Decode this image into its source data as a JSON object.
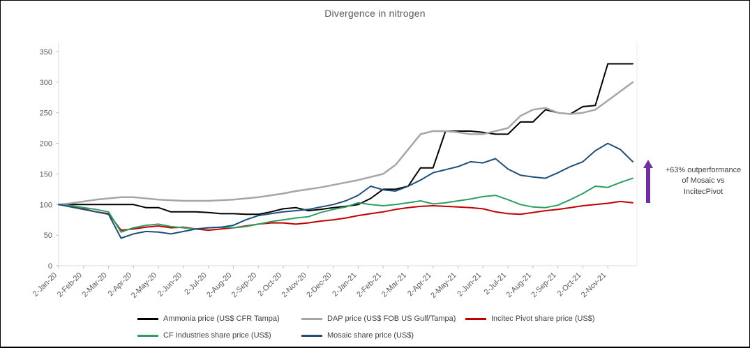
{
  "chart_data": {
    "type": "line",
    "title": "Divergence in nitrogen",
    "xlabel": "",
    "ylabel": "",
    "ylim": [
      0,
      350
    ],
    "yticks": [
      0,
      50,
      100,
      150,
      200,
      250,
      300,
      350
    ],
    "grid": false,
    "legend_position": "bottom",
    "x": [
      "2-Jan-20",
      "2-Feb-20",
      "2-Mar-20",
      "2-Apr-20",
      "2-May-20",
      "2-Jun-20",
      "2-Jul-20",
      "2-Aug-20",
      "2-Sep-20",
      "2-Oct-20",
      "2-Nov-20",
      "2-Dec-20",
      "2-Jan-21",
      "2-Feb-21",
      "2-Mar-21",
      "2-Apr-21",
      "2-May-21",
      "2-Jun-21",
      "2-Jul-21",
      "2-Aug-21",
      "2-Sep-21",
      "2-Oct-21",
      "2-Nov-21"
    ],
    "x_note": "values sampled twice per labelled month; even indices align with tick labels",
    "series": [
      {
        "name": "Ammonia price (US$ CFR Tampa)",
        "color": "#000000",
        "width": 2,
        "values": [
          100,
          100,
          100,
          100,
          100,
          100,
          100,
          95,
          95,
          88,
          88,
          88,
          87,
          85,
          85,
          84,
          84,
          88,
          93,
          95,
          90,
          92,
          95,
          97,
          100,
          110,
          125,
          125,
          130,
          160,
          160,
          220,
          220,
          220,
          218,
          215,
          215,
          235,
          235,
          255,
          250,
          248,
          260,
          262,
          330,
          330,
          330
        ]
      },
      {
        "name": "DAP price (US$ FOB US Gulf/Tampa)",
        "color": "#a6a6a6",
        "width": 2.5,
        "values": [
          100,
          102,
          105,
          108,
          110,
          112,
          112,
          110,
          108,
          107,
          106,
          106,
          106,
          107,
          108,
          110,
          112,
          115,
          118,
          122,
          125,
          128,
          132,
          136,
          140,
          145,
          150,
          165,
          190,
          215,
          220,
          220,
          218,
          215,
          215,
          220,
          225,
          245,
          255,
          258,
          250,
          248,
          250,
          255,
          270,
          285,
          300
        ]
      },
      {
        "name": "Incitec Pivot share price (US$)",
        "color": "#c00000",
        "width": 2,
        "values": [
          100,
          97,
          93,
          88,
          85,
          58,
          60,
          63,
          65,
          62,
          63,
          60,
          58,
          60,
          62,
          65,
          68,
          70,
          70,
          68,
          70,
          73,
          75,
          78,
          82,
          85,
          88,
          92,
          95,
          97,
          98,
          97,
          96,
          95,
          93,
          88,
          85,
          84,
          87,
          90,
          92,
          95,
          98,
          100,
          102,
          105,
          103
        ]
      },
      {
        "name": "CF Industries share price (US$)",
        "color": "#2e9e63",
        "width": 2,
        "values": [
          100,
          98,
          95,
          92,
          88,
          55,
          62,
          66,
          68,
          64,
          62,
          60,
          62,
          63,
          62,
          64,
          68,
          72,
          75,
          78,
          80,
          87,
          92,
          96,
          103,
          100,
          98,
          100,
          103,
          106,
          101,
          103,
          106,
          109,
          113,
          115,
          108,
          100,
          96,
          95,
          99,
          108,
          118,
          130,
          128,
          136,
          143
        ]
      },
      {
        "name": "Mosaic share price (US$)",
        "color": "#1f4e79",
        "width": 2,
        "values": [
          100,
          96,
          92,
          88,
          84,
          45,
          52,
          56,
          55,
          52,
          56,
          60,
          62,
          63,
          66,
          75,
          82,
          85,
          88,
          90,
          92,
          96,
          100,
          106,
          115,
          130,
          124,
          122,
          130,
          140,
          152,
          157,
          162,
          170,
          168,
          175,
          158,
          148,
          145,
          143,
          152,
          162,
          170,
          188,
          200,
          190,
          170
        ]
      }
    ],
    "annotation": {
      "lines": [
        "+63% outperformance",
        "of Mosaic vs",
        "IncitecPivot"
      ],
      "arrow_color": "#7030a0"
    },
    "colors": {
      "axis": "#d9d9d9",
      "tick": "#bfbfbf",
      "tick_label": "#595959"
    }
  }
}
